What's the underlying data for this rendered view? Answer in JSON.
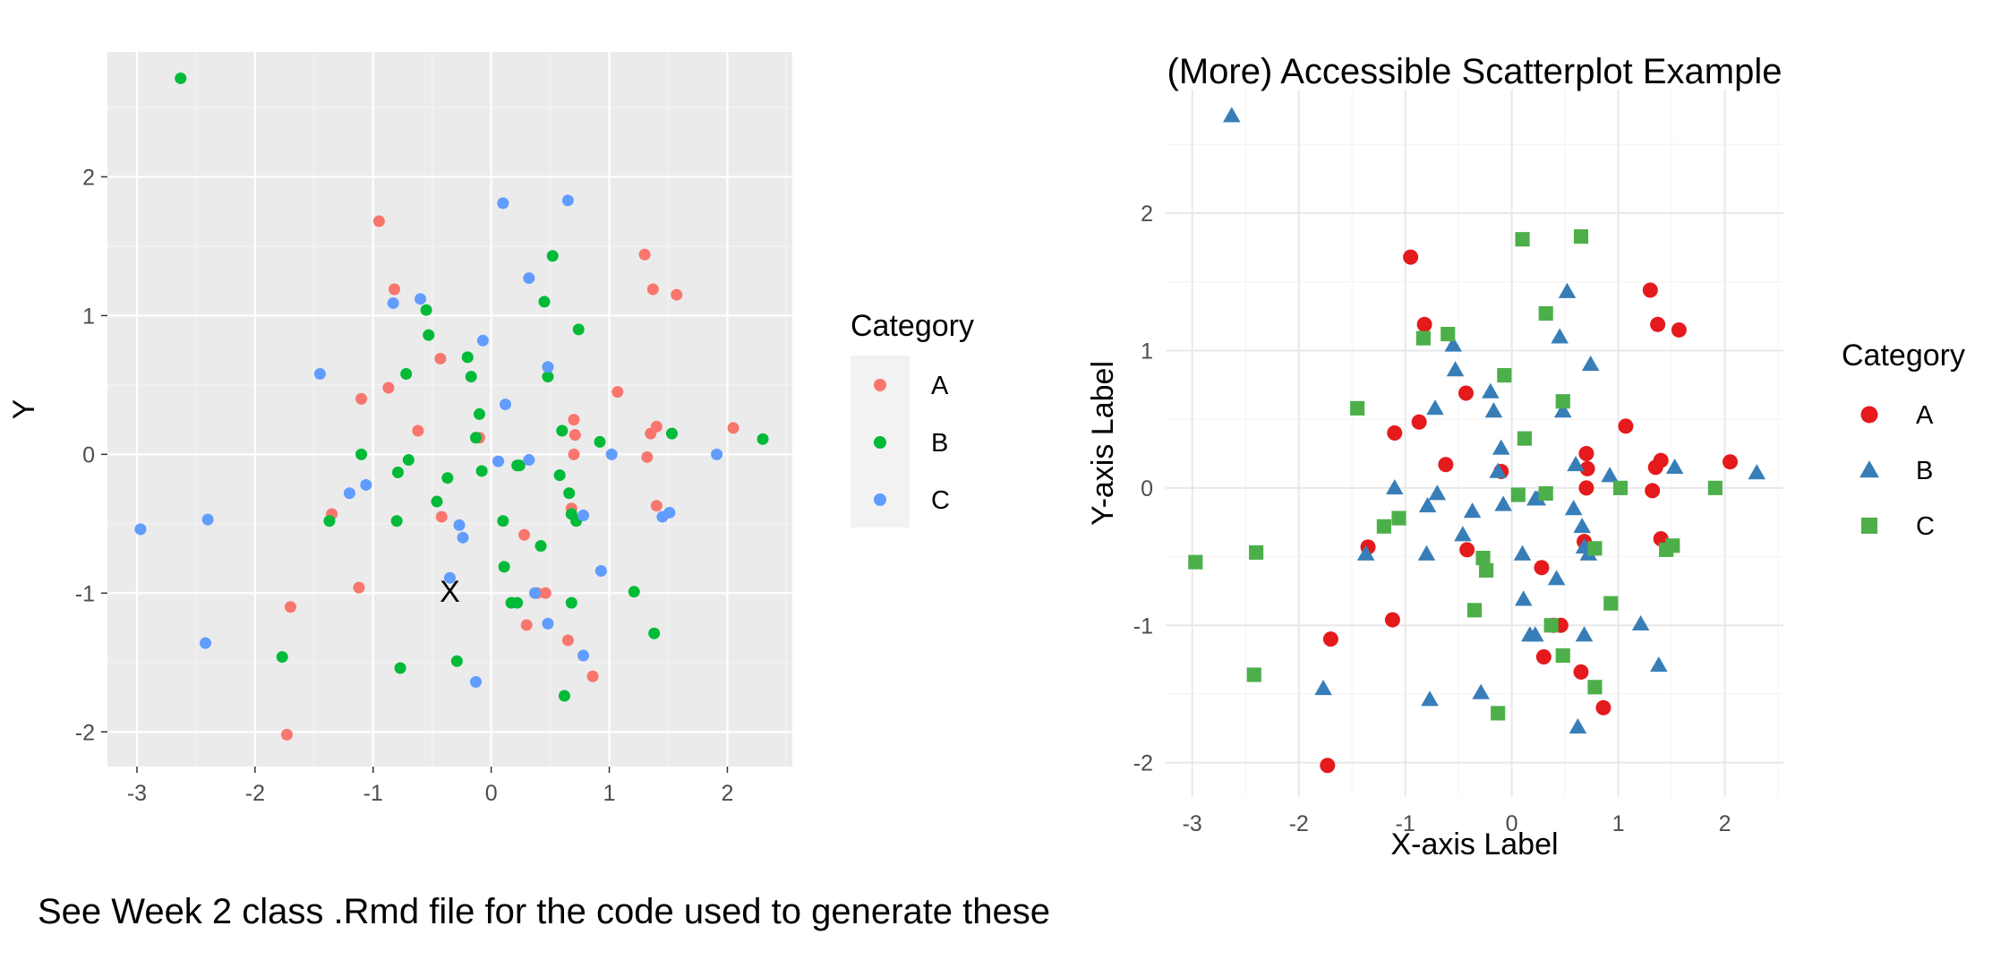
{
  "caption": "See Week 2 class .Rmd file for the code used to generate these",
  "chart_data": [
    {
      "type": "scatter",
      "title": "",
      "xlabel": "X",
      "ylabel": "Y",
      "xlim": [
        -3.25,
        2.55
      ],
      "ylim": [
        -2.25,
        2.9
      ],
      "x_ticks": [
        -3,
        -2,
        -1,
        0,
        1,
        2
      ],
      "y_ticks": [
        -2,
        -1,
        0,
        1,
        2
      ],
      "grid": true,
      "panel_background": "#EBEBEB",
      "legend": {
        "title": "Category",
        "placement": "right"
      },
      "series": [
        {
          "name": "A",
          "color": "#F8766D",
          "shape": "circle",
          "points": [
            [
              -0.95,
              1.68
            ],
            [
              -0.82,
              1.19
            ],
            [
              -0.87,
              0.48
            ],
            [
              -1.1,
              0.4
            ],
            [
              -0.43,
              0.69
            ],
            [
              -0.62,
              0.17
            ],
            [
              -0.42,
              -0.45
            ],
            [
              -1.35,
              -0.43
            ],
            [
              -1.12,
              -0.96
            ],
            [
              -1.7,
              -1.1
            ],
            [
              -1.73,
              -2.02
            ],
            [
              0.28,
              -0.58
            ],
            [
              -0.1,
              0.12
            ],
            [
              0.3,
              -1.23
            ],
            [
              0.39,
              -1.0
            ],
            [
              0.46,
              -1.0
            ],
            [
              0.65,
              -1.34
            ],
            [
              0.7,
              0.25
            ],
            [
              0.7,
              0.0
            ],
            [
              0.71,
              0.14
            ],
            [
              0.68,
              -0.39
            ],
            [
              0.86,
              -1.6
            ],
            [
              1.07,
              0.45
            ],
            [
              1.3,
              1.44
            ],
            [
              1.37,
              1.19
            ],
            [
              1.57,
              1.15
            ],
            [
              1.32,
              -0.02
            ],
            [
              1.35,
              0.15
            ],
            [
              1.4,
              0.2
            ],
            [
              1.4,
              -0.37
            ],
            [
              2.05,
              0.19
            ]
          ]
        },
        {
          "name": "B",
          "color": "#00BA38",
          "shape": "circle",
          "points": [
            [
              -2.63,
              2.71
            ],
            [
              -1.77,
              -1.46
            ],
            [
              -1.37,
              -0.48
            ],
            [
              -1.1,
              0.0
            ],
            [
              -0.8,
              -0.48
            ],
            [
              -0.79,
              -0.13
            ],
            [
              -0.77,
              -1.54
            ],
            [
              -0.72,
              0.58
            ],
            [
              -0.7,
              -0.04
            ],
            [
              -0.55,
              1.04
            ],
            [
              -0.53,
              0.86
            ],
            [
              -0.46,
              -0.34
            ],
            [
              -0.37,
              -0.17
            ],
            [
              -0.29,
              -1.49
            ],
            [
              -0.2,
              0.7
            ],
            [
              -0.17,
              0.56
            ],
            [
              -0.13,
              0.12
            ],
            [
              -0.1,
              0.29
            ],
            [
              -0.08,
              -0.12
            ],
            [
              0.1,
              -0.48
            ],
            [
              0.11,
              -0.81
            ],
            [
              0.17,
              -1.07
            ],
            [
              0.22,
              -0.08
            ],
            [
              0.24,
              -0.08
            ],
            [
              0.22,
              -1.07
            ],
            [
              0.42,
              -0.66
            ],
            [
              0.45,
              1.1
            ],
            [
              0.48,
              0.56
            ],
            [
              0.52,
              1.43
            ],
            [
              0.58,
              -0.15
            ],
            [
              0.62,
              -1.74
            ],
            [
              0.66,
              -0.28
            ],
            [
              0.68,
              -0.43
            ],
            [
              0.68,
              -1.07
            ],
            [
              0.72,
              -0.48
            ],
            [
              0.74,
              0.9
            ],
            [
              0.92,
              0.09
            ],
            [
              1.21,
              -0.99
            ],
            [
              1.38,
              -1.29
            ],
            [
              1.53,
              0.15
            ],
            [
              2.3,
              0.11
            ],
            [
              0.6,
              0.17
            ]
          ]
        },
        {
          "name": "C",
          "color": "#619CFF",
          "shape": "circle",
          "points": [
            [
              -2.97,
              -0.54
            ],
            [
              -2.4,
              -0.47
            ],
            [
              -2.42,
              -1.36
            ],
            [
              -1.45,
              0.58
            ],
            [
              -1.2,
              -0.28
            ],
            [
              -1.06,
              -0.22
            ],
            [
              -0.83,
              1.09
            ],
            [
              -0.6,
              1.12
            ],
            [
              -0.35,
              -0.89
            ],
            [
              -0.27,
              -0.51
            ],
            [
              -0.24,
              -0.6
            ],
            [
              -0.13,
              -1.64
            ],
            [
              -0.07,
              0.82
            ],
            [
              0.06,
              -0.05
            ],
            [
              0.12,
              0.36
            ],
            [
              0.1,
              1.81
            ],
            [
              0.32,
              -0.04
            ],
            [
              0.32,
              1.27
            ],
            [
              0.37,
              -1.0
            ],
            [
              0.48,
              -1.22
            ],
            [
              0.48,
              0.63
            ],
            [
              0.65,
              1.83
            ],
            [
              0.78,
              -0.44
            ],
            [
              0.78,
              -1.45
            ],
            [
              0.93,
              -0.84
            ],
            [
              1.02,
              0.0
            ],
            [
              1.45,
              -0.45
            ],
            [
              1.51,
              -0.42
            ],
            [
              1.91,
              0.0
            ]
          ]
        }
      ]
    },
    {
      "type": "scatter",
      "title": "(More) Accessible Scatterplot Example",
      "xlabel": "X-axis Label",
      "ylabel": "Y-axis Label",
      "xlim": [
        -3.25,
        2.55
      ],
      "ylim": [
        -2.25,
        2.9
      ],
      "x_ticks": [
        -3,
        -2,
        -1,
        0,
        1,
        2
      ],
      "y_ticks": [
        -2,
        -1,
        0,
        1,
        2
      ],
      "grid": true,
      "panel_background": "#FFFFFF",
      "legend": {
        "title": "Category",
        "placement": "right"
      },
      "series": [
        {
          "name": "A",
          "color": "#E41A1C",
          "shape": "circle",
          "points": [
            [
              -0.95,
              1.68
            ],
            [
              -0.82,
              1.19
            ],
            [
              -0.87,
              0.48
            ],
            [
              -1.1,
              0.4
            ],
            [
              -0.43,
              0.69
            ],
            [
              -0.62,
              0.17
            ],
            [
              -0.42,
              -0.45
            ],
            [
              -1.35,
              -0.43
            ],
            [
              -1.12,
              -0.96
            ],
            [
              -1.7,
              -1.1
            ],
            [
              -1.73,
              -2.02
            ],
            [
              0.28,
              -0.58
            ],
            [
              -0.1,
              0.12
            ],
            [
              0.3,
              -1.23
            ],
            [
              0.39,
              -1.0
            ],
            [
              0.46,
              -1.0
            ],
            [
              0.65,
              -1.34
            ],
            [
              0.7,
              0.25
            ],
            [
              0.7,
              0.0
            ],
            [
              0.71,
              0.14
            ],
            [
              0.68,
              -0.39
            ],
            [
              0.86,
              -1.6
            ],
            [
              1.07,
              0.45
            ],
            [
              1.3,
              1.44
            ],
            [
              1.37,
              1.19
            ],
            [
              1.57,
              1.15
            ],
            [
              1.32,
              -0.02
            ],
            [
              1.35,
              0.15
            ],
            [
              1.4,
              0.2
            ],
            [
              1.4,
              -0.37
            ],
            [
              2.05,
              0.19
            ]
          ]
        },
        {
          "name": "B",
          "color": "#377EB8",
          "shape": "triangle",
          "points": [
            [
              -2.63,
              2.71
            ],
            [
              -1.77,
              -1.46
            ],
            [
              -1.37,
              -0.48
            ],
            [
              -1.1,
              0.0
            ],
            [
              -0.8,
              -0.48
            ],
            [
              -0.79,
              -0.13
            ],
            [
              -0.77,
              -1.54
            ],
            [
              -0.72,
              0.58
            ],
            [
              -0.7,
              -0.04
            ],
            [
              -0.55,
              1.04
            ],
            [
              -0.53,
              0.86
            ],
            [
              -0.46,
              -0.34
            ],
            [
              -0.37,
              -0.17
            ],
            [
              -0.29,
              -1.49
            ],
            [
              -0.2,
              0.7
            ],
            [
              -0.17,
              0.56
            ],
            [
              -0.13,
              0.12
            ],
            [
              -0.1,
              0.29
            ],
            [
              -0.08,
              -0.12
            ],
            [
              0.1,
              -0.48
            ],
            [
              0.11,
              -0.81
            ],
            [
              0.17,
              -1.07
            ],
            [
              0.22,
              -0.08
            ],
            [
              0.24,
              -0.08
            ],
            [
              0.22,
              -1.07
            ],
            [
              0.42,
              -0.66
            ],
            [
              0.45,
              1.1
            ],
            [
              0.48,
              0.56
            ],
            [
              0.52,
              1.43
            ],
            [
              0.58,
              -0.15
            ],
            [
              0.62,
              -1.74
            ],
            [
              0.66,
              -0.28
            ],
            [
              0.68,
              -0.43
            ],
            [
              0.68,
              -1.07
            ],
            [
              0.72,
              -0.48
            ],
            [
              0.74,
              0.9
            ],
            [
              0.92,
              0.09
            ],
            [
              1.21,
              -0.99
            ],
            [
              1.38,
              -1.29
            ],
            [
              1.53,
              0.15
            ],
            [
              2.3,
              0.11
            ],
            [
              0.6,
              0.17
            ]
          ]
        },
        {
          "name": "C",
          "color": "#4DAF4A",
          "shape": "square",
          "points": [
            [
              -2.97,
              -0.54
            ],
            [
              -2.4,
              -0.47
            ],
            [
              -2.42,
              -1.36
            ],
            [
              -1.45,
              0.58
            ],
            [
              -1.2,
              -0.28
            ],
            [
              -1.06,
              -0.22
            ],
            [
              -0.83,
              1.09
            ],
            [
              -0.6,
              1.12
            ],
            [
              -0.35,
              -0.89
            ],
            [
              -0.27,
              -0.51
            ],
            [
              -0.24,
              -0.6
            ],
            [
              -0.13,
              -1.64
            ],
            [
              -0.07,
              0.82
            ],
            [
              0.06,
              -0.05
            ],
            [
              0.12,
              0.36
            ],
            [
              0.1,
              1.81
            ],
            [
              0.32,
              -0.04
            ],
            [
              0.32,
              1.27
            ],
            [
              0.37,
              -1.0
            ],
            [
              0.48,
              -1.22
            ],
            [
              0.48,
              0.63
            ],
            [
              0.65,
              1.83
            ],
            [
              0.78,
              -0.44
            ],
            [
              0.78,
              -1.45
            ],
            [
              0.93,
              -0.84
            ],
            [
              1.02,
              0.0
            ],
            [
              1.45,
              -0.45
            ],
            [
              1.51,
              -0.42
            ],
            [
              1.91,
              0.0
            ]
          ]
        }
      ]
    }
  ]
}
